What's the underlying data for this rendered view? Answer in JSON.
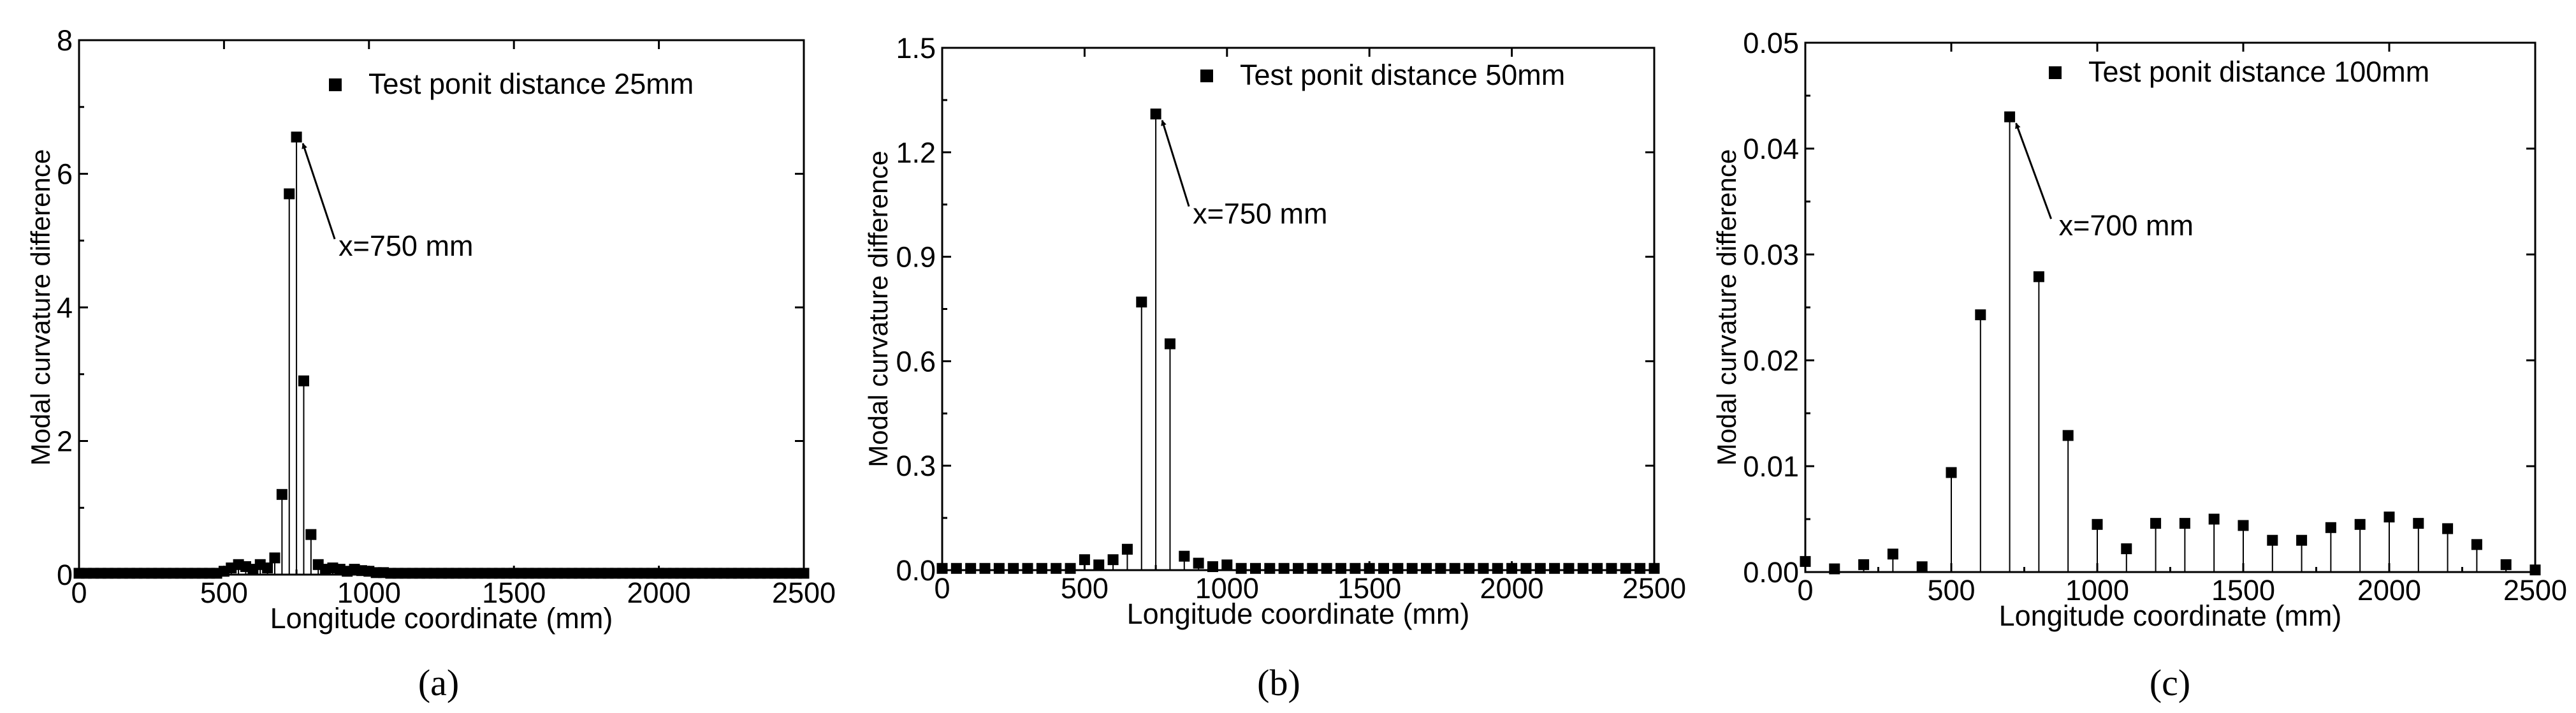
{
  "figure": {
    "captions": [
      "(a)",
      "(b)",
      "(c)"
    ]
  },
  "chart_data": [
    {
      "type": "scatter",
      "style": "stem",
      "title": "",
      "xlabel": "Longitude coordinate (mm)",
      "ylabel": "Modal curvature difference",
      "xlim": [
        0,
        2500
      ],
      "ylim": [
        0,
        8
      ],
      "xticks": [
        0,
        500,
        1000,
        1500,
        2000,
        2500
      ],
      "xtick_labels": [
        "0",
        "500",
        "1000",
        "1500",
        "2000",
        "2500"
      ],
      "yticks": [
        0,
        2,
        4,
        6,
        8
      ],
      "ytick_labels": [
        "0",
        "2",
        "4",
        "6",
        "8"
      ],
      "legend": "Test ponit distance 25mm",
      "legend_position": "top-right",
      "annotation": {
        "text": "x=750 mm",
        "x": 750,
        "y": 6.55
      },
      "color": "#000000",
      "series": [
        {
          "name": "Test ponit distance 25mm",
          "x": [
            0,
            25,
            50,
            75,
            100,
            125,
            150,
            175,
            200,
            225,
            250,
            275,
            300,
            325,
            350,
            375,
            400,
            425,
            450,
            475,
            500,
            525,
            550,
            575,
            600,
            625,
            650,
            675,
            700,
            725,
            750,
            775,
            800,
            825,
            850,
            875,
            900,
            925,
            950,
            975,
            1000,
            1025,
            1050,
            1075,
            1100,
            1125,
            1150,
            1175,
            1200,
            1225,
            1250,
            1275,
            1300,
            1325,
            1350,
            1375,
            1400,
            1425,
            1450,
            1475,
            1500,
            1525,
            1550,
            1575,
            1600,
            1625,
            1650,
            1675,
            1700,
            1725,
            1750,
            1775,
            1800,
            1825,
            1850,
            1875,
            1900,
            1925,
            1950,
            1975,
            2000,
            2025,
            2050,
            2075,
            2100,
            2125,
            2150,
            2175,
            2200,
            2225,
            2250,
            2275,
            2300,
            2325,
            2350,
            2375,
            2400,
            2425,
            2450,
            2475,
            2500
          ],
          "y": [
            0.02,
            0.02,
            0.02,
            0.02,
            0.02,
            0.02,
            0.02,
            0.02,
            0.02,
            0.02,
            0.02,
            0.02,
            0.02,
            0.02,
            0.02,
            0.02,
            0.02,
            0.02,
            0.02,
            0.02,
            0.05,
            0.1,
            0.15,
            0.12,
            0.08,
            0.15,
            0.1,
            0.25,
            1.2,
            5.7,
            6.55,
            2.9,
            0.6,
            0.15,
            0.08,
            0.1,
            0.08,
            0.05,
            0.08,
            0.06,
            0.05,
            0.03,
            0.03,
            0.02,
            0.02,
            0.02,
            0.02,
            0.02,
            0.02,
            0.02,
            0.02,
            0.02,
            0.02,
            0.02,
            0.02,
            0.02,
            0.02,
            0.02,
            0.02,
            0.02,
            0.02,
            0.02,
            0.02,
            0.02,
            0.02,
            0.02,
            0.02,
            0.02,
            0.02,
            0.02,
            0.02,
            0.02,
            0.02,
            0.02,
            0.02,
            0.02,
            0.02,
            0.02,
            0.02,
            0.02,
            0.02,
            0.02,
            0.02,
            0.02,
            0.02,
            0.02,
            0.02,
            0.02,
            0.02,
            0.02,
            0.02,
            0.02,
            0.02,
            0.02,
            0.02,
            0.02,
            0.02,
            0.02,
            0.02,
            0.02,
            0.02
          ]
        }
      ]
    },
    {
      "type": "scatter",
      "style": "stem",
      "title": "",
      "xlabel": "Longitude coordinate (mm)",
      "ylabel": "Modal curvature difference",
      "xlim": [
        0,
        2500
      ],
      "ylim": [
        0,
        1.5
      ],
      "xticks": [
        0,
        500,
        1000,
        1500,
        2000,
        2500
      ],
      "xtick_labels": [
        "0",
        "500",
        "1000",
        "1500",
        "2000",
        "2500"
      ],
      "yticks": [
        0,
        0.3,
        0.6,
        0.9,
        1.2,
        1.5
      ],
      "ytick_labels": [
        "0.0",
        "0.3",
        "0.6",
        "0.9",
        "1.2",
        "1.5"
      ],
      "legend": "Test ponit distance 50mm",
      "legend_position": "top-right",
      "annotation": {
        "text": "x=750 mm",
        "x": 750,
        "y": 1.31
      },
      "color": "#000000",
      "series": [
        {
          "name": "Test ponit distance 50mm",
          "x": [
            0,
            50,
            100,
            150,
            200,
            250,
            300,
            350,
            400,
            450,
            500,
            550,
            600,
            650,
            700,
            750,
            800,
            850,
            900,
            950,
            1000,
            1050,
            1100,
            1150,
            1200,
            1250,
            1300,
            1350,
            1400,
            1450,
            1500,
            1550,
            1600,
            1650,
            1700,
            1750,
            1800,
            1850,
            1900,
            1950,
            2000,
            2050,
            2100,
            2150,
            2200,
            2250,
            2300,
            2350,
            2400,
            2450,
            2500
          ],
          "y": [
            0.005,
            0.005,
            0.005,
            0.005,
            0.005,
            0.005,
            0.005,
            0.005,
            0.005,
            0.005,
            0.03,
            0.015,
            0.03,
            0.06,
            0.77,
            1.31,
            0.65,
            0.04,
            0.02,
            0.01,
            0.015,
            0.005,
            0.005,
            0.005,
            0.005,
            0.005,
            0.005,
            0.005,
            0.005,
            0.005,
            0.005,
            0.005,
            0.005,
            0.005,
            0.005,
            0.005,
            0.005,
            0.005,
            0.005,
            0.005,
            0.005,
            0.005,
            0.005,
            0.005,
            0.005,
            0.005,
            0.005,
            0.005,
            0.005,
            0.005,
            0.005
          ]
        }
      ]
    },
    {
      "type": "scatter",
      "style": "stem",
      "title": "",
      "xlabel": "Longitude coordinate (mm)",
      "ylabel": "Modal curvature difference",
      "xlim": [
        0,
        2500
      ],
      "ylim": [
        0,
        0.05
      ],
      "xticks": [
        0,
        500,
        1000,
        1500,
        2000,
        2500
      ],
      "xtick_labels": [
        "0",
        "500",
        "1000",
        "1500",
        "2000",
        "2500"
      ],
      "yticks": [
        0,
        0.01,
        0.02,
        0.03,
        0.04,
        0.05
      ],
      "ytick_labels": [
        "0.00",
        "0.01",
        "0.02",
        "0.03",
        "0.04",
        "0.05"
      ],
      "legend": "Test ponit distance 100mm",
      "legend_position": "top-right",
      "annotation": {
        "text": "x=700 mm",
        "x": 700,
        "y": 0.043
      },
      "color": "#000000",
      "series": [
        {
          "name": "Test ponit distance 100mm",
          "x": [
            0,
            100,
            200,
            300,
            400,
            500,
            600,
            700,
            800,
            900,
            1000,
            1100,
            1200,
            1300,
            1400,
            1500,
            1600,
            1700,
            1800,
            1900,
            2000,
            2100,
            2200,
            2300,
            2400,
            2500
          ],
          "y": [
            0.001,
            0.0003,
            0.0007,
            0.0017,
            0.0005,
            0.0094,
            0.0243,
            0.043,
            0.0279,
            0.0129,
            0.0045,
            0.0022,
            0.0046,
            0.0046,
            0.005,
            0.0044,
            0.003,
            0.003,
            0.0042,
            0.0045,
            0.0052,
            0.0046,
            0.0041,
            0.0026,
            0.0007,
            0.0002
          ]
        }
      ]
    }
  ]
}
